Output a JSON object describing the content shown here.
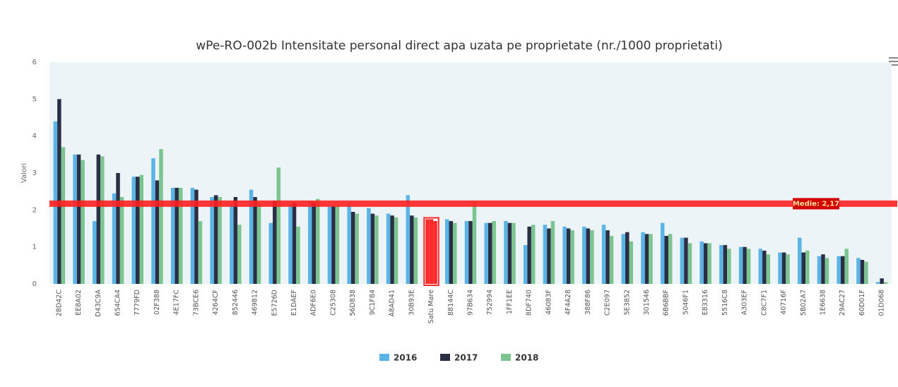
{
  "chart_data": {
    "type": "bar",
    "title": "wPe-RO-002b Intensitate personal direct apa uzata pe proprietate (nr./1000 proprietati)",
    "y_label": "Valori",
    "categories": [
      "28D42C",
      "EE8A02",
      "D43C9A",
      "654CA4",
      "7779FD",
      "02F388",
      "4E17FC",
      "73BCE6",
      "4264CF",
      "852446",
      "469812",
      "E5726D",
      "E1DAEF",
      "ADF6E0",
      "C25308",
      "56D838",
      "9C1F84",
      "A8AD41",
      "30B93E",
      "Satu Mare",
      "88144C",
      "97B634",
      "752994",
      "1FF1EE",
      "8DF740",
      "46083F",
      "4F4A28",
      "388F86",
      "C2E097",
      "5E3852",
      "301546",
      "6B6BBF",
      "5046F1",
      "E83316",
      "5516C8",
      "A303EF",
      "C8C7F1",
      "40716F",
      "5B02A7",
      "1E6638",
      "29AC27",
      "60D01F",
      "01D068"
    ],
    "series": [
      {
        "name": "2016",
        "color": "#5ab4e5",
        "values": [
          4.4,
          3.5,
          1.7,
          2.45,
          2.9,
          3.4,
          2.6,
          2.6,
          2.35,
          2.15,
          2.55,
          1.65,
          2.15,
          2.25,
          2.1,
          2.2,
          2.05,
          1.9,
          2.4,
          1.75,
          1.75,
          1.7,
          1.65,
          1.7,
          1.05,
          1.6,
          1.55,
          1.55,
          1.6,
          1.35,
          1.4,
          1.65,
          1.25,
          1.15,
          1.05,
          1.0,
          0.95,
          0.85,
          1.25,
          0.75,
          0.75,
          0.7,
          0.05
        ]
      },
      {
        "name": "2017",
        "color": "#2b2f45",
        "values": [
          5.0,
          3.5,
          3.5,
          3.0,
          2.9,
          2.8,
          2.6,
          2.55,
          2.4,
          2.35,
          2.35,
          2.25,
          2.2,
          2.2,
          2.1,
          1.95,
          1.9,
          1.85,
          1.85,
          1.75,
          1.7,
          1.7,
          1.65,
          1.65,
          1.55,
          1.5,
          1.5,
          1.5,
          1.45,
          1.4,
          1.35,
          1.3,
          1.25,
          1.1,
          1.05,
          1.0,
          0.9,
          0.85,
          0.85,
          0.8,
          0.75,
          0.65,
          0.15
        ]
      },
      {
        "name": "2018",
        "color": "#7cc490",
        "values": [
          3.7,
          3.35,
          3.45,
          2.35,
          2.95,
          3.65,
          2.6,
          1.7,
          2.35,
          1.6,
          2.2,
          3.15,
          1.55,
          2.3,
          2.1,
          1.9,
          1.85,
          1.8,
          1.8,
          1.7,
          1.65,
          2.25,
          1.7,
          1.65,
          1.6,
          1.7,
          1.45,
          1.45,
          1.3,
          1.15,
          1.35,
          1.35,
          1.1,
          1.1,
          0.95,
          0.95,
          0.8,
          0.8,
          0.9,
          0.7,
          0.95,
          0.6,
          0.05
        ]
      }
    ],
    "highlight": {
      "category": "Satu Mare",
      "color": "#ff2a2a"
    },
    "mean_line": {
      "value": 2.17,
      "label": "Medie: 2,17",
      "color": "#ff2020"
    },
    "ylim": [
      0,
      6
    ],
    "yticks": [
      0,
      1,
      2,
      3,
      4,
      5,
      6
    ],
    "grid": false,
    "plot_background": "#edf4f8"
  }
}
